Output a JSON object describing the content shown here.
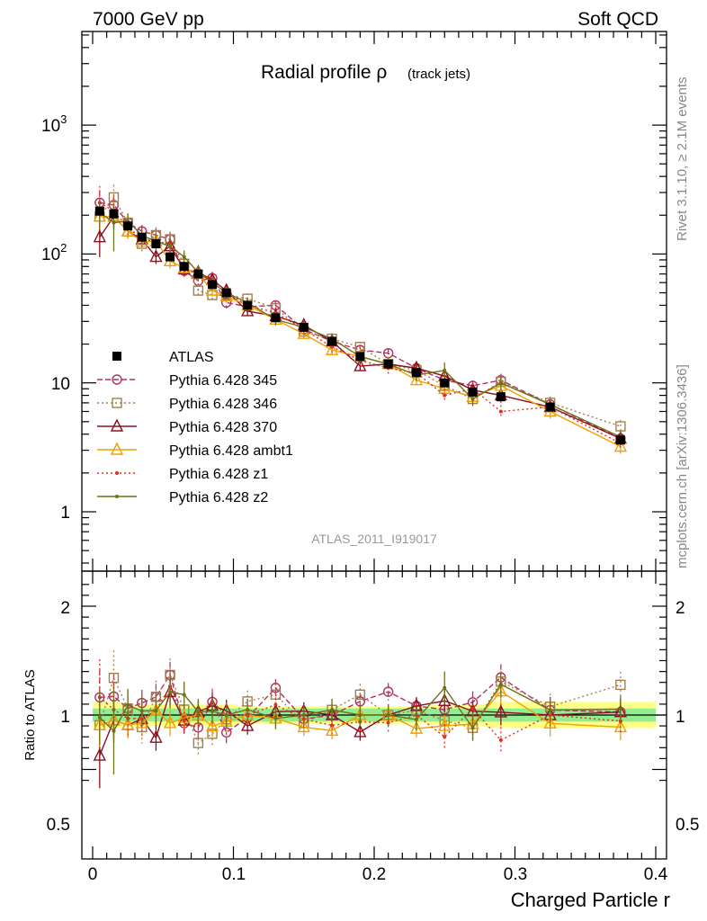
{
  "header": {
    "left": "7000 GeV pp",
    "right": "Soft QCD"
  },
  "side": {
    "rivet": "Rivet 3.1.10, ≥ 2.1M events",
    "mcplots": "mcplots.cern.ch [arXiv:1306.3436]"
  },
  "chart_data": {
    "type": "line",
    "title_main": "Radial profile ρ",
    "title_sub": "(track jets)",
    "analysis_tag": "ATLAS_2011_I919017",
    "xlabel": "Charged Particle r",
    "ylabel_ratio": "Ratio to ATLAS",
    "xlim": [
      -0.01,
      0.4
    ],
    "ylim_main": [
      0.35,
      5000
    ],
    "ylim_ratio": [
      0.35,
      2.3
    ],
    "yscale_main": "log",
    "x_ticks": [
      "0",
      "0.1",
      "0.2",
      "0.3",
      "0.4"
    ],
    "y_ticks_main": [
      "1",
      "10",
      "10^2",
      "10^3"
    ],
    "y_ticks_ratio": [
      "0.5",
      "1",
      "2"
    ],
    "legend_position": "middle-left",
    "x": [
      0.005,
      0.015,
      0.025,
      0.035,
      0.045,
      0.055,
      0.065,
      0.075,
      0.085,
      0.095,
      0.11,
      0.13,
      0.15,
      0.17,
      0.19,
      0.21,
      0.23,
      0.25,
      0.27,
      0.29,
      0.325,
      0.375
    ],
    "data": {
      "name": "ATLAS",
      "color": "#000000",
      "values": [
        215,
        205,
        165,
        135,
        120,
        95,
        80,
        70,
        58,
        50,
        40,
        32,
        27,
        21,
        16,
        14,
        12,
        10,
        8.5,
        7.8,
        6.5,
        3.6
      ],
      "band_inner": [
        0.06,
        0.06,
        0.06,
        0.06,
        0.06,
        0.06,
        0.06,
        0.06,
        0.06,
        0.06,
        0.06,
        0.06,
        0.06,
        0.06,
        0.06,
        0.06,
        0.06,
        0.06,
        0.06,
        0.06,
        0.06,
        0.06
      ],
      "band_outer": [
        0.12,
        0.12,
        0.1,
        0.1,
        0.1,
        0.1,
        0.1,
        0.1,
        0.1,
        0.1,
        0.08,
        0.08,
        0.08,
        0.08,
        0.08,
        0.08,
        0.08,
        0.09,
        0.1,
        0.12,
        0.12,
        0.12
      ]
    },
    "series": [
      {
        "name": "Pythia 6.428 345",
        "color": "#b03060",
        "dash": "6,3",
        "marker": "circle",
        "values": [
          250,
          240,
          175,
          150,
          140,
          130,
          74,
          62,
          65,
          42,
          39,
          40,
          26,
          21,
          18,
          17,
          13,
          10.5,
          9.5,
          10.5,
          6.8,
          3.7
        ],
        "ratio_err": [
          0.25,
          0.2,
          0.12,
          0.12,
          0.12,
          0.12,
          0.1,
          0.1,
          0.1,
          0.1,
          0.08,
          0.08,
          0.08,
          0.08,
          0.08,
          0.08,
          0.08,
          0.1,
          0.1,
          0.12,
          0.12,
          0.12
        ]
      },
      {
        "name": "Pythia 6.428 346",
        "color": "#a08050",
        "dash": "2,3",
        "marker": "square",
        "values": [
          195,
          275,
          175,
          120,
          140,
          130,
          84,
          52,
          48,
          48,
          45,
          38,
          25,
          22,
          19,
          14,
          12.5,
          9.5,
          7.5,
          10.2,
          7.0,
          4.6
        ],
        "ratio_err": [
          0.3,
          0.25,
          0.15,
          0.15,
          0.15,
          0.15,
          0.12,
          0.12,
          0.12,
          0.12,
          0.1,
          0.1,
          0.1,
          0.1,
          0.1,
          0.1,
          0.1,
          0.12,
          0.12,
          0.12,
          0.12,
          0.12
        ]
      },
      {
        "name": "Pythia 6.428 370",
        "color": "#8b1020",
        "dash": "",
        "marker": "triangle",
        "values": [
          135,
          195,
          150,
          130,
          95,
          115,
          76,
          72,
          63,
          52,
          36,
          33,
          28,
          21,
          13.5,
          14,
          13,
          11.3,
          8.8,
          8.0,
          6.5,
          3.7
        ],
        "ratio_err": [
          0.3,
          0.2,
          0.12,
          0.12,
          0.12,
          0.12,
          0.1,
          0.1,
          0.1,
          0.1,
          0.08,
          0.08,
          0.08,
          0.08,
          0.08,
          0.08,
          0.08,
          0.1,
          0.1,
          0.12,
          0.12,
          0.12
        ]
      },
      {
        "name": "Pythia 6.428 ambt1",
        "color": "#f0a000",
        "dash": "",
        "marker": "triangle",
        "values": [
          195,
          195,
          150,
          125,
          125,
          88,
          78,
          70,
          52,
          47,
          40,
          31,
          24,
          18,
          16,
          14,
          10.5,
          9.0,
          7.8,
          9.5,
          6.0,
          3.2
        ],
        "ratio_err": [
          0.2,
          0.15,
          0.12,
          0.12,
          0.12,
          0.12,
          0.1,
          0.1,
          0.1,
          0.1,
          0.08,
          0.08,
          0.08,
          0.08,
          0.08,
          0.08,
          0.08,
          0.1,
          0.1,
          0.12,
          0.12,
          0.12
        ]
      },
      {
        "name": "Pythia 6.428 z1",
        "color": "#e03020",
        "dash": "2,3",
        "marker": "dot",
        "values": [
          250,
          215,
          160,
          130,
          125,
          120,
          76,
          70,
          65,
          50,
          40,
          35,
          26,
          19,
          15,
          13,
          12,
          8.0,
          9.0,
          6.0,
          6.5,
          3.4
        ],
        "ratio_err": [
          0.35,
          0.25,
          0.15,
          0.15,
          0.15,
          0.15,
          0.12,
          0.12,
          0.12,
          0.12,
          0.1,
          0.1,
          0.1,
          0.1,
          0.1,
          0.1,
          0.1,
          0.12,
          0.12,
          0.12,
          0.12,
          0.12
        ]
      },
      {
        "name": "Pythia 6.428 z2",
        "color": "#707018",
        "dash": "",
        "marker": "dot",
        "values": [
          210,
          175,
          180,
          140,
          125,
          115,
          95,
          72,
          60,
          50,
          42,
          31,
          27,
          22,
          16,
          14,
          11.5,
          12.5,
          7.5,
          10.0,
          6.8,
          3.8
        ],
        "ratio_err": [
          0.25,
          0.4,
          0.15,
          0.15,
          0.15,
          0.15,
          0.12,
          0.12,
          0.12,
          0.12,
          0.1,
          0.1,
          0.1,
          0.1,
          0.1,
          0.1,
          0.1,
          0.15,
          0.12,
          0.12,
          0.12,
          0.12
        ]
      }
    ]
  }
}
